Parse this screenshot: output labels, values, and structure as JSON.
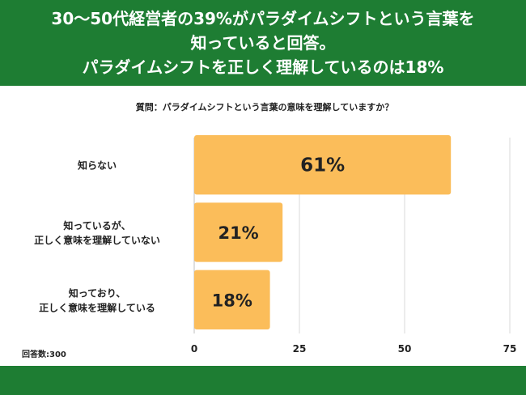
{
  "header": {
    "lines": [
      "30〜50代経営者の39%がパラダイムシフトという言葉を",
      "知っていると回答。",
      "パラダイムシフトを正しく理解しているのは18%"
    ]
  },
  "chart_data": {
    "type": "bar",
    "orientation": "horizontal",
    "title": "質問：パラダイムシフトという言葉の意味を理解していますか？",
    "categories": [
      [
        "知らない"
      ],
      [
        "知っているが、",
        "正しく意味を理解していない"
      ],
      [
        "知っており、",
        "正しく意味を理解している"
      ]
    ],
    "values": [
      61,
      21,
      18
    ],
    "value_labels": [
      "61%",
      "21%",
      "18%"
    ],
    "xlim": [
      0,
      75
    ],
    "x_ticks": [
      0,
      25,
      50,
      75
    ],
    "grid": true,
    "bar_color": "#fbbd5a",
    "note": "回答数:300"
  },
  "colors": {
    "header_bg": "#1e7d33",
    "bar": "#fbbd5a",
    "grid": "#d9d9d9",
    "axis": "#bfbfbf"
  }
}
